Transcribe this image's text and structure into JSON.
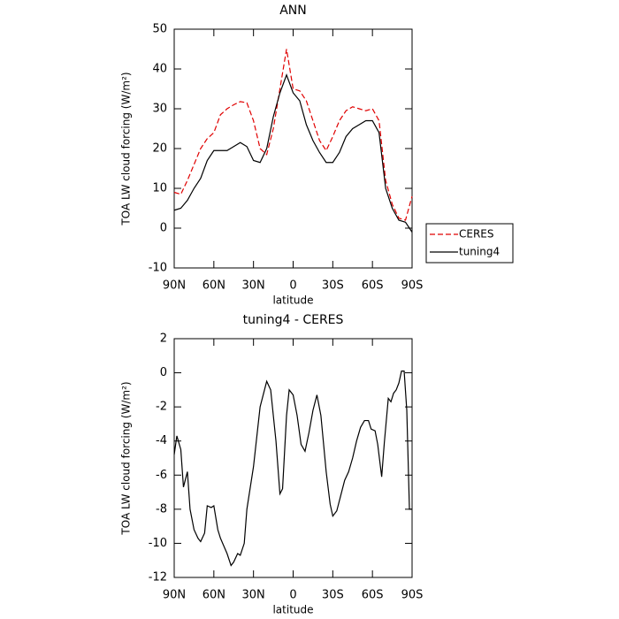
{
  "chart_data": [
    {
      "type": "line",
      "title": "ANN",
      "xlabel": "latitude",
      "ylabel": "TOA LW cloud forcing (W/m²)",
      "x": [
        90,
        85,
        80,
        75,
        70,
        65,
        60,
        55,
        50,
        45,
        40,
        35,
        30,
        25,
        20,
        15,
        10,
        5,
        0,
        -5,
        -10,
        -15,
        -20,
        -25,
        -30,
        -35,
        -40,
        -45,
        -50,
        -55,
        -60,
        -65,
        -70,
        -75,
        -80,
        -85,
        -90
      ],
      "series": [
        {
          "name": "CERES",
          "color": "#e00000",
          "dash": true,
          "values": [
            9,
            8.5,
            12,
            16,
            20,
            22.5,
            24,
            28.5,
            30,
            31,
            31.8,
            31.5,
            27,
            20,
            18.5,
            25,
            35,
            45,
            35,
            34.5,
            32,
            27,
            22,
            19.5,
            23,
            27,
            29.5,
            30.5,
            30,
            29.5,
            30,
            27,
            12,
            6,
            2.5,
            2,
            8
          ]
        },
        {
          "name": "tuning4",
          "color": "#000000",
          "dash": false,
          "values": [
            4.5,
            5,
            7,
            10,
            12.5,
            17,
            19.5,
            19.5,
            19.5,
            20.5,
            21.5,
            20.5,
            17,
            16.5,
            20,
            28,
            34,
            38.5,
            34,
            32,
            26,
            22,
            19,
            16.5,
            16.5,
            19,
            23,
            25,
            26,
            27,
            27,
            24,
            10,
            5,
            2,
            1.5,
            -1
          ]
        }
      ],
      "xlim": [
        90,
        -90
      ],
      "xticks": [
        {
          "value": 90,
          "label": "90N"
        },
        {
          "value": 60,
          "label": "60N"
        },
        {
          "value": 30,
          "label": "30N"
        },
        0,
        {
          "value": -30,
          "label": "30S"
        },
        {
          "value": -60,
          "label": "60S"
        },
        {
          "value": -90,
          "label": "90S"
        }
      ],
      "ylim": [
        -10,
        50
      ],
      "yticks": [
        -10,
        0,
        10,
        20,
        30,
        40,
        50
      ],
      "legend": "right"
    },
    {
      "type": "line",
      "title": "tuning4 - CERES",
      "xlabel": "latitude",
      "ylabel": "TOA LW cloud forcing (W/m²)",
      "x": [
        90,
        88,
        85,
        83,
        80,
        78,
        75,
        72,
        70,
        67,
        65,
        62,
        60,
        57,
        55,
        50,
        47,
        45,
        42,
        40,
        37,
        35,
        30,
        25,
        20,
        17,
        13,
        10,
        8,
        5,
        3,
        0,
        -3,
        -6,
        -9,
        -12,
        -15,
        -18,
        -21,
        -25,
        -28,
        -30,
        -33,
        -36,
        -39,
        -42,
        -45,
        -48,
        -51,
        -54,
        -57,
        -59,
        -62,
        -64,
        -67,
        -69,
        -72,
        -74,
        -76,
        -78,
        -80,
        -82,
        -84,
        -86,
        -88,
        -90
      ],
      "values": [
        -4.8,
        -3.7,
        -4.5,
        -6.7,
        -5.8,
        -8,
        -9.2,
        -9.7,
        -9.9,
        -9.4,
        -7.8,
        -7.9,
        -7.8,
        -9.2,
        -9.7,
        -10.6,
        -11.3,
        -11.1,
        -10.6,
        -10.7,
        -10,
        -8,
        -5.5,
        -2,
        -0.5,
        -1,
        -4,
        -7.1,
        -6.8,
        -2.5,
        -1,
        -1.3,
        -2.5,
        -4.2,
        -4.6,
        -3.5,
        -2.2,
        -1.3,
        -2.5,
        -5.8,
        -7.7,
        -8.4,
        -8.1,
        -7.2,
        -6.3,
        -5.8,
        -5,
        -4,
        -3.2,
        -2.8,
        -2.8,
        -3.3,
        -3.4,
        -4.2,
        -6.1,
        -4.1,
        -1.5,
        -1.7,
        -1.2,
        -1,
        -0.6,
        0.1,
        0.1,
        -2.2,
        -8,
        -8
      ],
      "color": "#000000",
      "xlim": [
        90,
        -90
      ],
      "xticks": [
        {
          "value": 90,
          "label": "90N"
        },
        {
          "value": 60,
          "label": "60N"
        },
        {
          "value": 30,
          "label": "30N"
        },
        0,
        {
          "value": -30,
          "label": "30S"
        },
        {
          "value": -60,
          "label": "60S"
        },
        {
          "value": -90,
          "label": "90S"
        }
      ],
      "ylim": [
        -12,
        2
      ],
      "yticks": [
        -12,
        -10,
        -8,
        -6,
        -4,
        -2,
        0,
        2
      ]
    }
  ]
}
